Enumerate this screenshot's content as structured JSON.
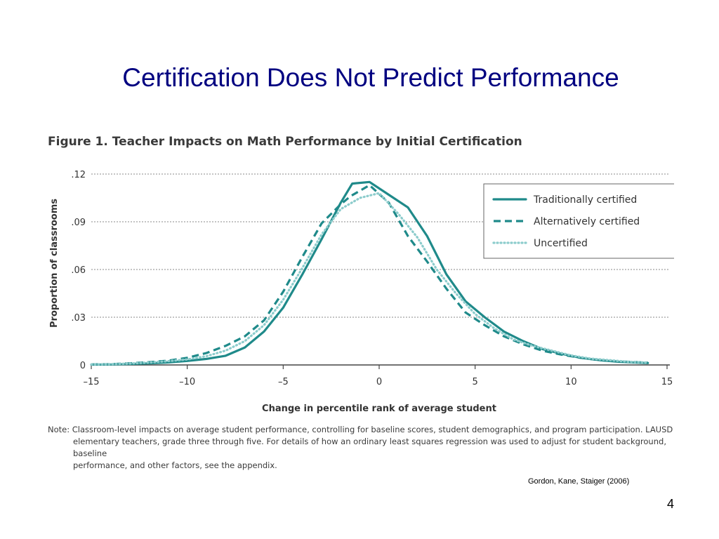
{
  "slide": {
    "title": "Certification Does Not Predict Performance",
    "citation": "Gordon, Kane, Staiger (2006)",
    "page_number": "4"
  },
  "figure": {
    "title": "Figure 1. Teacher Impacts on Math Performance by Initial Certification",
    "note_lines": [
      "Note: Classroom-level impacts on average student performance, controlling for baseline scores, student demographics, and program participation. LAUSD",
      "elementary teachers, grade three through five. For details of how an ordinary least squares regression was used to adjust for student background, baseline",
      "performance, and other factors, see the appendix."
    ]
  },
  "colors": {
    "title": "#000080",
    "traditional": "#1f8a8a",
    "alternative": "#1f8a8a",
    "uncertified": "#8ccccc",
    "grid": "#888888"
  },
  "chart_data": {
    "type": "line",
    "title": "Figure 1. Teacher Impacts on Math Performance by Initial Certification",
    "xlabel": "Change in percentile rank of average student",
    "ylabel": "Proportion of classrooms",
    "xlim": [
      -15,
      15
    ],
    "ylim": [
      0,
      0.12
    ],
    "xticks": [
      -15,
      -10,
      -5,
      0,
      5,
      10,
      15
    ],
    "xtick_labels": [
      "–15",
      "–10",
      "–5",
      "0",
      "5",
      "10",
      "15"
    ],
    "yticks": [
      0,
      0.03,
      0.06,
      0.09,
      0.12
    ],
    "ytick_labels": [
      "0",
      ".03",
      ".06",
      ".09",
      ".12"
    ],
    "grid": "horizontal dotted",
    "legend_position": "top-right",
    "series": [
      {
        "name": "Traditionally certified",
        "style": "solid",
        "x": [
          -15,
          -14,
          -13,
          -12,
          -11,
          -10,
          -9,
          -8,
          -7,
          -6,
          -5,
          -4,
          -3,
          -2,
          -1.4,
          -0.5,
          0.5,
          1.5,
          2.5,
          3.5,
          4.5,
          5.5,
          6.5,
          7.5,
          8.5,
          9.5,
          10.5,
          11.5,
          12.5,
          13.5,
          14
        ],
        "y": [
          0.0002,
          0.0003,
          0.0006,
          0.001,
          0.0016,
          0.0025,
          0.0038,
          0.0058,
          0.011,
          0.021,
          0.036,
          0.057,
          0.079,
          0.102,
          0.114,
          0.115,
          0.107,
          0.099,
          0.081,
          0.057,
          0.04,
          0.03,
          0.021,
          0.015,
          0.01,
          0.007,
          0.0045,
          0.003,
          0.002,
          0.0015,
          0.0012
        ]
      },
      {
        "name": "Alternatively certified",
        "style": "dashed",
        "x": [
          -15,
          -14,
          -13,
          -12,
          -11,
          -10,
          -9,
          -8,
          -7,
          -6,
          -5,
          -4,
          -3,
          -2,
          -1.5,
          -0.5,
          0.5,
          1.5,
          2.5,
          3.5,
          4.5,
          5.5,
          6.5,
          7.5,
          8.5,
          9.5,
          10.5,
          11.5,
          12.5,
          13.5,
          14
        ],
        "y": [
          0.0003,
          0.0005,
          0.001,
          0.0017,
          0.0027,
          0.0045,
          0.0075,
          0.012,
          0.018,
          0.028,
          0.046,
          0.068,
          0.089,
          0.101,
          0.106,
          0.113,
          0.102,
          0.081,
          0.065,
          0.048,
          0.033,
          0.025,
          0.018,
          0.013,
          0.009,
          0.0065,
          0.0045,
          0.003,
          0.0022,
          0.0017,
          0.0014
        ]
      },
      {
        "name": "Uncertified",
        "style": "dotted",
        "x": [
          -15,
          -14,
          -13,
          -12,
          -11,
          -10,
          -9,
          -8,
          -7,
          -6,
          -5,
          -4,
          -3,
          -2,
          -1,
          0,
          1,
          2,
          3,
          4,
          5,
          6,
          7,
          8,
          9,
          10,
          11,
          12,
          13,
          14
        ],
        "y": [
          0.0003,
          0.0005,
          0.0009,
          0.0015,
          0.0024,
          0.0035,
          0.0055,
          0.009,
          0.015,
          0.025,
          0.041,
          0.061,
          0.082,
          0.098,
          0.105,
          0.108,
          0.095,
          0.08,
          0.06,
          0.045,
          0.032,
          0.023,
          0.016,
          0.012,
          0.009,
          0.006,
          0.004,
          0.003,
          0.002,
          0.0015
        ]
      }
    ]
  }
}
